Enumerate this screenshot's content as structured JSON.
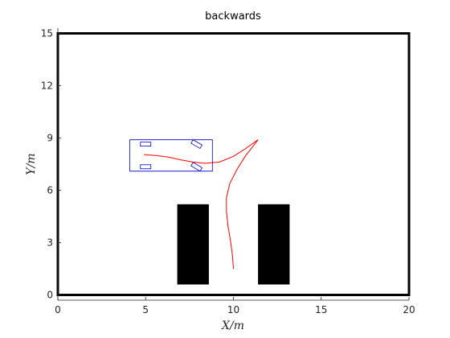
{
  "chart_data": {
    "type": "line",
    "title": "backwards",
    "xlabel": "X/m",
    "ylabel": "Y/m",
    "xlim": [
      0,
      20
    ],
    "ylim": [
      -0.3,
      15.3
    ],
    "xticks": [
      "0",
      "5",
      "10",
      "15",
      "20"
    ],
    "yticks": [
      "0",
      "3",
      "6",
      "9",
      "12",
      "15"
    ],
    "grid": false,
    "series": [
      {
        "color": "#ff0000",
        "points": [
          [
            10.0,
            1.5
          ],
          [
            9.95,
            2.2
          ],
          [
            9.85,
            3.0
          ],
          [
            9.7,
            3.9
          ],
          [
            9.6,
            4.8
          ],
          [
            9.6,
            5.6
          ],
          [
            9.8,
            6.4
          ],
          [
            10.2,
            7.2
          ],
          [
            10.7,
            8.0
          ],
          [
            11.1,
            8.5
          ],
          [
            11.4,
            8.9
          ]
        ]
      },
      {
        "color": "#ff0000",
        "points": [
          [
            4.9,
            8.05
          ],
          [
            5.6,
            8.0
          ],
          [
            6.3,
            7.9
          ],
          [
            7.0,
            7.75
          ],
          [
            7.7,
            7.62
          ],
          [
            8.4,
            7.55
          ],
          [
            9.2,
            7.62
          ],
          [
            10.0,
            7.95
          ],
          [
            10.7,
            8.4
          ],
          [
            11.4,
            8.9
          ]
        ]
      }
    ],
    "car": {
      "color": "#0000cc",
      "body": [
        [
          4.1,
          7.1
        ],
        [
          8.8,
          7.1
        ],
        [
          8.8,
          8.9
        ],
        [
          4.1,
          8.9
        ]
      ],
      "wheels": [
        {
          "x": 5.0,
          "y": 8.65,
          "angle_deg": 0
        },
        {
          "x": 5.0,
          "y": 7.35,
          "angle_deg": 0
        },
        {
          "x": 7.9,
          "y": 8.65,
          "angle_deg": -30
        },
        {
          "x": 7.9,
          "y": 7.35,
          "angle_deg": -30
        }
      ]
    },
    "parked_cars": [
      {
        "x": [
          6.8,
          8.6
        ],
        "y": [
          0.6,
          5.2
        ],
        "color": "#000000"
      },
      {
        "x": [
          11.4,
          13.2
        ],
        "y": [
          0.6,
          5.2
        ],
        "color": "#000000"
      }
    ],
    "boundary": {
      "x": [
        0,
        20
      ],
      "y": [
        0,
        15
      ],
      "color": "#000000"
    }
  }
}
